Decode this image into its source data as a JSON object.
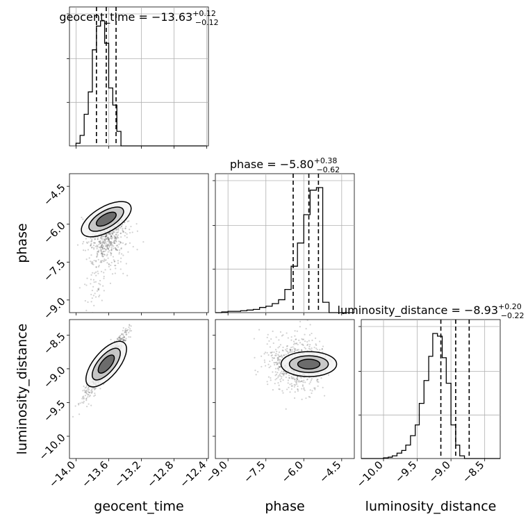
{
  "chart_data": {
    "type": "corner",
    "parameters": [
      {
        "name": "geocent_time",
        "range": [
          -14.08,
          -12.38
        ],
        "ticks": [
          -14.0,
          -13.6,
          -13.2,
          -12.8,
          -12.4
        ],
        "tick_labels": [
          "−14.0",
          "−13.6",
          "−13.2",
          "−12.8",
          "−12.4"
        ],
        "median": -13.63,
        "lower": -13.75,
        "upper": -13.51
      },
      {
        "name": "phase",
        "range": [
          -9.5,
          -4.0
        ],
        "ticks": [
          -9.0,
          -7.5,
          -6.0,
          -4.5
        ],
        "tick_labels": [
          "−9.0",
          "−7.5",
          "−6.0",
          "−4.5"
        ],
        "median": -5.8,
        "lower": -6.42,
        "upper": -5.42
      },
      {
        "name": "luminosity_distance",
        "range": [
          -10.33,
          -8.27
        ],
        "ticks": [
          -10.0,
          -9.5,
          -9.0,
          -8.5
        ],
        "tick_labels": [
          "−10.0",
          "−9.5",
          "−9.0",
          "−8.5"
        ],
        "median": -8.93,
        "lower": -9.15,
        "upper": -8.73
      }
    ],
    "titles": [
      {
        "prefix": "geocent_time = −13.63",
        "sup": "+0.12",
        "sub": "−0.12"
      },
      {
        "prefix": "phase = −5.80",
        "sup": "+0.38",
        "sub": "−0.62"
      },
      {
        "prefix": "luminosity_distance = −8.93",
        "sup": "+0.20",
        "sub": "−0.22"
      }
    ],
    "axis_labels": {
      "x": [
        "geocent_time",
        "phase",
        "luminosity_distance"
      ],
      "y": [
        "phase",
        "luminosity_distance"
      ]
    },
    "histograms": [
      {
        "edges": [
          -14.0,
          -13.95,
          -13.9,
          -13.85,
          -13.8,
          -13.75,
          -13.7,
          -13.65,
          -13.6,
          -13.55,
          -13.5,
          -13.45,
          -13.4,
          -13.35,
          -13.3,
          -13.25,
          -13.2,
          -13.15,
          -13.1,
          -13.05,
          -13.0,
          -12.95,
          -12.9,
          -12.85,
          -12.8,
          -12.75,
          -12.7,
          -12.65,
          -12.6,
          -12.55,
          -12.5,
          -12.45,
          -12.4
        ],
        "counts": [
          0.02,
          0.08,
          0.24,
          0.41,
          0.73,
          0.91,
          0.95,
          0.78,
          0.44,
          0.31,
          0.11,
          0,
          0,
          0,
          0,
          0,
          0,
          0,
          0,
          0,
          0,
          0,
          0,
          0,
          0,
          0,
          0,
          0,
          0,
          0,
          0,
          0
        ]
      },
      {
        "edges": [
          -9.5,
          -9.25,
          -9.0,
          -8.75,
          -8.5,
          -8.25,
          -8.0,
          -7.75,
          -7.5,
          -7.25,
          -7.0,
          -6.75,
          -6.5,
          -6.25,
          -6.0,
          -5.75,
          -5.5,
          -5.25,
          -5.0,
          -4.75,
          -4.5,
          -4.25,
          -4.0
        ],
        "counts": [
          0,
          0.005,
          0.01,
          0.01,
          0.015,
          0.02,
          0.025,
          0.04,
          0.05,
          0.07,
          0.1,
          0.18,
          0.36,
          0.54,
          0.76,
          0.95,
          0.97,
          0.08,
          0,
          0,
          0,
          0
        ]
      },
      {
        "edges": [
          -10.33,
          -10.27,
          -10.2,
          -10.13,
          -10.07,
          -10.0,
          -9.93,
          -9.87,
          -9.8,
          -9.73,
          -9.67,
          -9.6,
          -9.53,
          -9.47,
          -9.4,
          -9.33,
          -9.27,
          -9.2,
          -9.13,
          -9.07,
          -9.0,
          -8.93,
          -8.87,
          -8.8,
          -8.73,
          -8.67,
          -8.6,
          -8.53,
          -8.47,
          -8.4,
          -8.33,
          -8.27
        ],
        "counts": [
          0,
          0,
          0,
          0,
          0,
          0.005,
          0.01,
          0.02,
          0.04,
          0.06,
          0.1,
          0.17,
          0.25,
          0.41,
          0.58,
          0.76,
          0.93,
          0.91,
          0.75,
          0.56,
          0.25,
          0.1,
          0.02,
          0.0,
          0,
          0,
          0,
          0,
          0,
          0,
          0
        ]
      }
    ],
    "grid": true,
    "quantiles": [
      0.16,
      0.5,
      0.84
    ]
  }
}
